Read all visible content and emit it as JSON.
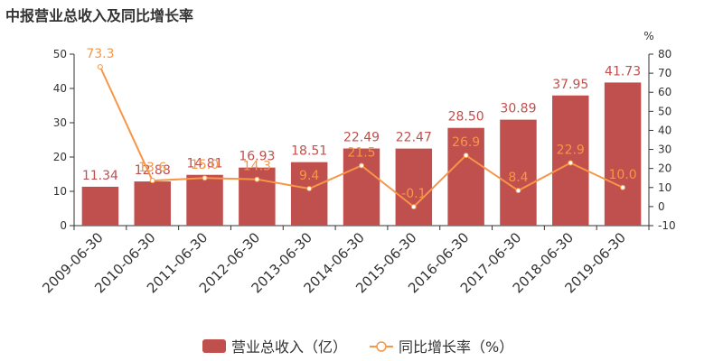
{
  "title": "中报营业总收入及同比增长率",
  "chart_data": {
    "type": "bar",
    "title": "中报营业总收入及同比增长率",
    "categories": [
      "2009-06-30",
      "2010-06-30",
      "2011-06-30",
      "2012-06-30",
      "2013-06-30",
      "2014-06-30",
      "2015-06-30",
      "2016-06-30",
      "2017-06-30",
      "2018-06-30",
      "2019-06-30"
    ],
    "series": [
      {
        "name": "营业总收入（亿）",
        "type": "bar",
        "axis": "left",
        "color": "#c0504d",
        "values": [
          11.34,
          12.88,
          14.81,
          16.93,
          18.51,
          22.49,
          22.47,
          28.5,
          30.89,
          37.95,
          41.73
        ],
        "labels": [
          "11.34",
          "12.88",
          "14.81",
          "16.93",
          "18.51",
          "22.49",
          "22.47",
          "28.50",
          "30.89",
          "37.95",
          "41.73"
        ]
      },
      {
        "name": "同比增长率（%）",
        "type": "line",
        "axis": "right",
        "color": "#f79646",
        "values": [
          73.3,
          13.6,
          15.0,
          14.3,
          9.4,
          21.5,
          -0.1,
          26.9,
          8.4,
          22.9,
          10.0
        ],
        "labels": [
          "73.3",
          "13.6",
          "15.0",
          "14.3",
          "9.4",
          "21.5",
          "-0.1",
          "26.9",
          "8.4",
          "22.9",
          "10.0"
        ]
      }
    ],
    "y_left": {
      "min": 0,
      "max": 50,
      "ticks": [
        "0",
        "10",
        "20",
        "30",
        "40",
        "50"
      ]
    },
    "y_right": {
      "min": -10,
      "max": 80,
      "unit": "%",
      "ticks": [
        "-10",
        "0",
        "10",
        "20",
        "30",
        "40",
        "50",
        "60",
        "70",
        "80"
      ]
    },
    "grid": false,
    "legend": "bottom-center"
  }
}
